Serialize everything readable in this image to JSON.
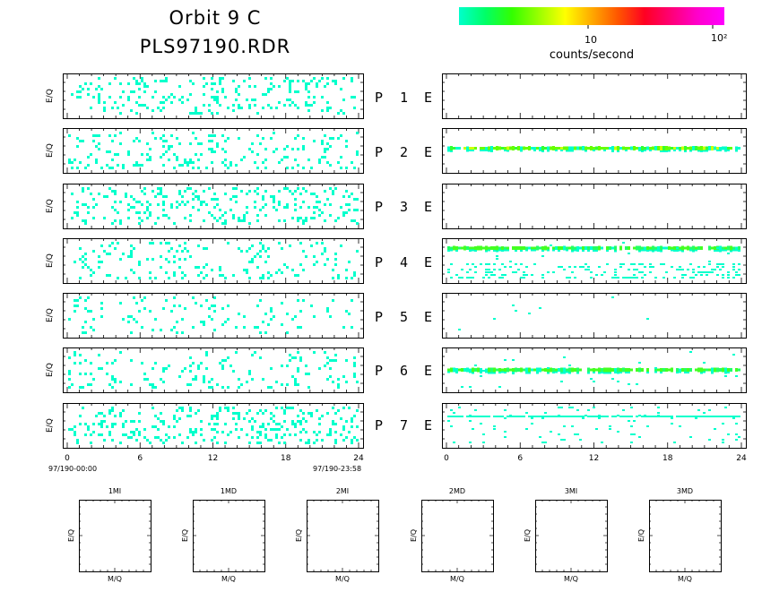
{
  "header": {
    "title_line1": "Orbit 9 C",
    "title_line2": "PLS97190.RDR"
  },
  "colorbar": {
    "unit_label": "counts/second",
    "tick_10": "10",
    "tick_100": "10²",
    "colors": [
      "#00ffcc",
      "#00ff66",
      "#33ff00",
      "#99ff00",
      "#ffff00",
      "#ffaa00",
      "#ff5500",
      "#ff0022",
      "#ff0077",
      "#ff00cc",
      "#ff00ff"
    ]
  },
  "chart_data": {
    "type": "heatmap",
    "x_axis": {
      "range": [
        0,
        24
      ],
      "ticks": [
        "0",
        "6",
        "12",
        "18",
        "24"
      ],
      "start_label": "97/190-00:00",
      "end_label": "97/190-23:58"
    },
    "ylabel": "E/Q",
    "rows": [
      {
        "channel": "P",
        "number": "1",
        "right": "E"
      },
      {
        "channel": "P",
        "number": "2",
        "right": "E"
      },
      {
        "channel": "P",
        "number": "3",
        "right": "E"
      },
      {
        "channel": "P",
        "number": "4",
        "right": "E"
      },
      {
        "channel": "P",
        "number": "5",
        "right": "E"
      },
      {
        "channel": "P",
        "number": "6",
        "right": "E"
      },
      {
        "channel": "P",
        "number": "7",
        "right": "E"
      }
    ],
    "left_panels_density": [
      0.14,
      0.12,
      0.16,
      0.11,
      0.07,
      0.09,
      0.17
    ],
    "right_panels": [
      {
        "panel": "P1 E",
        "bands": []
      },
      {
        "panel": "P2 E",
        "bands": [
          {
            "level": 0.55,
            "intensity": "green-yellow"
          }
        ]
      },
      {
        "panel": "P3 E",
        "bands": []
      },
      {
        "panel": "P4 E",
        "bands": [
          {
            "level": 0.78,
            "intensity": "green"
          }
        ],
        "scatter": 0.18
      },
      {
        "panel": "P5 E",
        "bands": [],
        "scatter": 0.003
      },
      {
        "panel": "P6 E",
        "bands": [
          {
            "level": 0.5,
            "intensity": "green"
          }
        ],
        "scatter": 0.02
      },
      {
        "panel": "P7 E",
        "bands": [
          {
            "level": 0.7,
            "intensity": "cyan"
          }
        ],
        "scatter": 0.06
      }
    ]
  },
  "mass_panels": {
    "xlabel": "M/Q",
    "ylabel": "E/Q",
    "titles": [
      "1MI",
      "1MD",
      "2MI",
      "2MD",
      "3MI",
      "3MD"
    ]
  }
}
